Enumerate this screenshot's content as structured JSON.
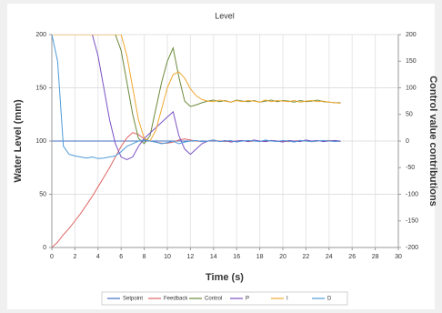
{
  "chart_data": {
    "type": "line",
    "title": "Level",
    "xlabel": "Time (s)",
    "ylabel": "Water Level (mm)",
    "y2label": "Control value contributions",
    "x": [
      0,
      0.5,
      1,
      1.5,
      2,
      2.5,
      3,
      3.5,
      4,
      4.5,
      5,
      5.5,
      6,
      6.5,
      7,
      7.5,
      8,
      8.5,
      9,
      9.5,
      10,
      10.5,
      11,
      11.5,
      12,
      12.5,
      13,
      13.5,
      14,
      14.5,
      15,
      15.5,
      16,
      16.5,
      17,
      17.5,
      18,
      18.5,
      19,
      19.5,
      20,
      20.5,
      21,
      21.5,
      22,
      22.5,
      23,
      23.5,
      24,
      24.5,
      25
    ],
    "series": [
      {
        "name": "Setpoint",
        "color": "#4472c4",
        "values": [
          100,
          100,
          100,
          100,
          100,
          100,
          100,
          100,
          100,
          100,
          100,
          100,
          100,
          100,
          100,
          100,
          100,
          100,
          100,
          100,
          100,
          100,
          100,
          100,
          100,
          100,
          100,
          100,
          100,
          100,
          100,
          100,
          100,
          100,
          100,
          100,
          100,
          100,
          100,
          100,
          100,
          100,
          100,
          100,
          100,
          100,
          100,
          100,
          100,
          100,
          100
        ]
      },
      {
        "name": "Feedback",
        "color": "#e06666",
        "values": [
          0,
          5,
          12,
          18,
          25,
          32,
          40,
          48,
          57,
          66,
          75,
          85,
          95,
          103,
          108,
          106,
          102,
          100,
          99,
          98,
          98,
          99,
          101,
          102,
          101,
          100,
          99.5,
          100,
          100.5,
          100,
          99.5,
          100,
          100,
          100.5,
          99.5,
          100,
          100,
          99.5,
          100.5,
          100,
          100,
          99.5,
          100,
          100.5,
          100,
          99.5,
          100,
          100,
          100.5,
          100,
          99.5
        ]
      },
      {
        "name": "Control",
        "color": "#6b8a3a",
        "axis": "y2",
        "values": [
          200,
          200,
          200,
          200,
          200,
          200,
          200,
          200,
          200,
          200,
          200,
          200,
          170,
          110,
          50,
          5,
          -5,
          10,
          60,
          110,
          150,
          175,
          120,
          75,
          65,
          68,
          72,
          75,
          77,
          74,
          76,
          73,
          77,
          75,
          74,
          76,
          73,
          75,
          77,
          74,
          76,
          75,
          73,
          76,
          74,
          75,
          77,
          74,
          73,
          72,
          72
        ]
      },
      {
        "name": "P",
        "color": "#7b52c4",
        "axis": "y2",
        "values": [
          200,
          200,
          200,
          200,
          200,
          200,
          200,
          200,
          160,
          100,
          40,
          -5,
          -30,
          -35,
          -30,
          -10,
          5,
          15,
          25,
          35,
          45,
          55,
          10,
          -15,
          -25,
          -15,
          -5,
          0,
          2,
          -1,
          1,
          -2,
          0,
          1,
          -1,
          2,
          0,
          -1,
          1,
          0,
          -2,
          1,
          0,
          -1,
          2,
          0,
          1,
          -1,
          0,
          1,
          0
        ]
      },
      {
        "name": "I",
        "color": "#f0a830",
        "axis": "y2",
        "values": [
          200,
          200,
          200,
          200,
          200,
          200,
          200,
          200,
          200,
          200,
          200,
          200,
          200,
          160,
          100,
          40,
          5,
          0,
          20,
          60,
          100,
          125,
          130,
          118,
          98,
          85,
          78,
          75,
          74,
          77,
          75,
          73,
          76,
          74,
          76,
          75,
          73,
          77,
          74,
          76,
          75,
          74,
          76,
          73,
          75,
          76,
          74,
          75,
          73,
          72,
          71
        ]
      },
      {
        "name": "D",
        "color": "#4f9bd9",
        "axis": "y2",
        "values": [
          200,
          150,
          -10,
          -25,
          -28,
          -30,
          -32,
          -30,
          -33,
          -32,
          -30,
          -28,
          -20,
          -10,
          -5,
          0,
          2,
          0,
          -2,
          -5,
          -3,
          0,
          -5,
          -2,
          0,
          1,
          -1,
          0,
          2,
          -1,
          0,
          1,
          -2,
          0,
          1,
          0,
          -1,
          2,
          0,
          -1,
          1,
          0,
          -2,
          1,
          0,
          -1,
          0,
          1,
          0,
          -1,
          0
        ]
      }
    ],
    "xlim": [
      0,
      30
    ],
    "xticks": [
      0,
      2,
      4,
      6,
      8,
      10,
      12,
      14,
      16,
      18,
      20,
      22,
      24,
      26,
      28,
      30
    ],
    "ylim": [
      0,
      200
    ],
    "yticks": [
      0,
      50,
      100,
      150,
      200
    ],
    "y2lim": [
      -200,
      200
    ],
    "y2ticks": [
      -200,
      -150,
      -100,
      -50,
      0,
      50,
      100,
      150,
      200
    ],
    "grid": true,
    "legend": "bottom"
  }
}
